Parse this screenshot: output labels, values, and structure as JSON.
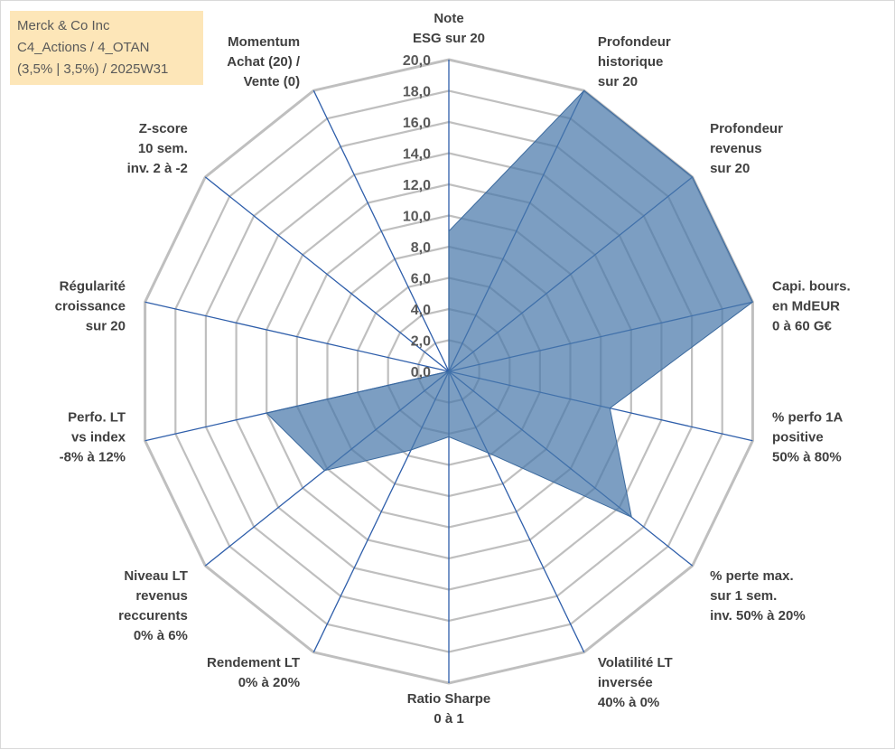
{
  "info": {
    "line1": "Merck & Co Inc",
    "line2": "C4_Actions / 4_OTAN",
    "line3": "(3,5% | 3,5%) / 2025W31"
  },
  "chart_data": {
    "type": "radar",
    "title": "",
    "rmin": 0,
    "rmax": 20,
    "tick_step": 2,
    "tick_labels": [
      "0,0",
      "2,0",
      "4,0",
      "6,0",
      "8,0",
      "10,0",
      "12,0",
      "14,0",
      "16,0",
      "18,0",
      "20,0"
    ],
    "axes": [
      [
        "Note",
        "ESG sur 20"
      ],
      [
        "Profondeur",
        "historique",
        "sur 20"
      ],
      [
        "Profondeur",
        "revenus",
        "sur 20"
      ],
      [
        "Capi. bours.",
        "en MdEUR",
        "0 à 60 G€"
      ],
      [
        "% perfo 1A",
        "positive",
        "50% à 80%"
      ],
      [
        "% perte max.",
        "sur 1 sem.",
        "inv. 50% à 20%"
      ],
      [
        "Volatilité LT",
        "inversée",
        "40% à 0%"
      ],
      [
        "Ratio Sharpe",
        "0 à 1"
      ],
      [
        "Rendement LT",
        "0% à 20%"
      ],
      [
        "Niveau LT",
        "revenus",
        "reccurents",
        "0% à 6%"
      ],
      [
        "Perfo. LT",
        "vs index",
        "-8% à 12%"
      ],
      [
        "Régularité",
        "croissance",
        "sur 20"
      ],
      [
        "Z-score",
        "10 sem.",
        "inv. 2 à -2"
      ],
      [
        "Momentum",
        "Achat (20) /",
        "Vente (0)"
      ]
    ],
    "series": [
      {
        "values": [
          9,
          20,
          20,
          20,
          10.6,
          15,
          5.8,
          4.2,
          5.6,
          10.2,
          12,
          0,
          0,
          0
        ]
      }
    ],
    "colors": {
      "fill": "#4a78aa",
      "fill_opacity": 0.72,
      "stroke": "#3c6a9e",
      "grid": "#bfbfbf",
      "axis": "#2e5eaa",
      "info_bg": "#fde6b8"
    },
    "grid": true,
    "legend": "none"
  }
}
